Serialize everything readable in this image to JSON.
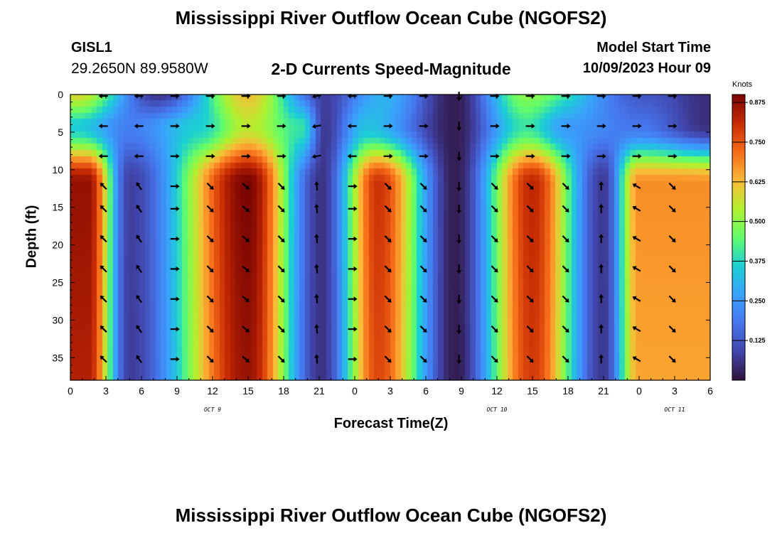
{
  "title": "Mississippi River Outflow Ocean Cube (NGOFS2)",
  "station_id": "GISL1",
  "station_coords": "29.2650N  89.9580W",
  "subtitle": "2-D Currents Speed-Magnitude",
  "model_start_label": "Model Start Time",
  "model_start_value": "10/09/2023 Hour 09",
  "chart_data": {
    "type": "heatmap",
    "title": "2-D Currents Speed-Magnitude",
    "xlabel": "Forecast Time(Z)",
    "ylabel": "Depth (ft)",
    "x_hours_range": [
      0,
      54
    ],
    "ylim": [
      0,
      38
    ],
    "x_tick_labels": [
      "0",
      "3",
      "6",
      "9",
      "12",
      "15",
      "18",
      "21",
      "0",
      "3",
      "6",
      "9",
      "12",
      "15",
      "18",
      "21",
      "0",
      "3",
      "6"
    ],
    "y_tick_labels": [
      "0",
      "5",
      "10",
      "15",
      "20",
      "25",
      "30",
      "35"
    ],
    "date_labels": [
      {
        "label": "OCT 9",
        "hour": 12
      },
      {
        "label": "OCT 10",
        "hour": 36
      },
      {
        "label": "OCT 11",
        "hour": 51
      }
    ],
    "colorbar": {
      "units": "Knots",
      "min": 0,
      "max": 0.9,
      "labels": [
        "0.875",
        "0.750",
        "0.625",
        "0.500",
        "0.375",
        "0.250",
        "0.125"
      ]
    },
    "lower_speed_peaks": [
      {
        "hour": 1.5,
        "speed": 0.87
      },
      {
        "hour": 15.0,
        "speed": 0.9
      },
      {
        "hour": 26.0,
        "speed": 0.8
      },
      {
        "hour": 39.0,
        "speed": 0.82
      },
      {
        "hour": 48.0,
        "speed": 0.68
      }
    ],
    "slack_minima": [
      {
        "hour": 5.0,
        "speed": 0.08
      },
      {
        "hour": 21.2,
        "speed": 0.06
      },
      {
        "hour": 32.5,
        "speed": 0.02
      },
      {
        "hour": 45.0,
        "speed": 0.07
      }
    ],
    "surface_speed_peaks": [
      {
        "hour": 0.5,
        "speed": 0.6
      },
      {
        "hour": 15.0,
        "speed": 0.62
      },
      {
        "hour": 38.5,
        "speed": 0.5
      }
    ],
    "arrow_depths_ft": [
      0,
      4,
      8,
      12,
      15,
      19,
      23,
      27,
      31,
      35
    ]
  },
  "footer_title": "Mississippi River Outflow Ocean Cube (NGOFS2)"
}
